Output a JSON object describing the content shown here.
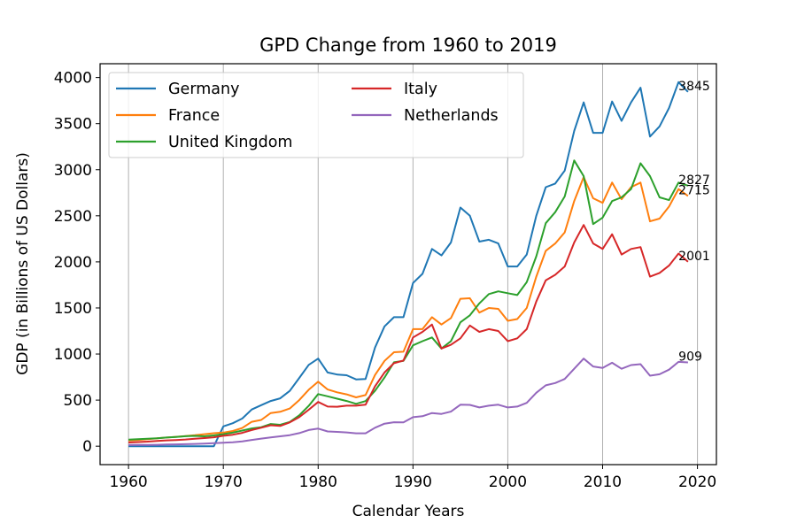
{
  "chart_data": {
    "type": "line",
    "title": "GPD Change from 1960 to 2019",
    "xlabel": "Calendar Years",
    "ylabel": "GDP (in  Billions of US Dollars)",
    "xlim": [
      1957,
      2022
    ],
    "ylim": [
      -200,
      4150
    ],
    "xticks": [
      1960,
      1970,
      1980,
      1990,
      2000,
      2010,
      2020
    ],
    "yticks": [
      0,
      500,
      1000,
      1500,
      2000,
      2500,
      3000,
      3500,
      4000
    ],
    "grid": "vertical",
    "legend_position": "upper-left",
    "legend_columns": 2,
    "x": [
      1960,
      1961,
      1962,
      1963,
      1964,
      1965,
      1966,
      1967,
      1968,
      1969,
      1970,
      1971,
      1972,
      1973,
      1974,
      1975,
      1976,
      1977,
      1978,
      1979,
      1980,
      1981,
      1982,
      1983,
      1984,
      1985,
      1986,
      1987,
      1988,
      1989,
      1990,
      1991,
      1992,
      1993,
      1994,
      1995,
      1996,
      1997,
      1998,
      1999,
      2000,
      2001,
      2002,
      2003,
      2004,
      2005,
      2006,
      2007,
      2008,
      2009,
      2010,
      2011,
      2012,
      2013,
      2014,
      2015,
      2016,
      2017,
      2018,
      2019
    ],
    "series": [
      {
        "name": "Germany",
        "color": "#1f77b4",
        "end_label": "3845",
        "values": [
          0,
          0,
          0,
          0,
          0,
          0,
          0,
          0,
          0,
          0,
          215,
          249,
          300,
          398,
          445,
          490,
          519,
          600,
          740,
          882,
          950,
          800,
          778,
          770,
          725,
          730,
          1070,
          1300,
          1400,
          1400,
          1770,
          1870,
          2140,
          2070,
          2210,
          2590,
          2500,
          2220,
          2240,
          2200,
          1950,
          1950,
          2080,
          2500,
          2810,
          2850,
          2990,
          3420,
          3730,
          3400,
          3400,
          3740,
          3530,
          3730,
          3890,
          3360,
          3470,
          3670,
          3950,
          3845
        ]
      },
      {
        "name": "France",
        "color": "#ff7f0e",
        "end_label": "2715",
        "values": [
          62,
          68,
          76,
          85,
          94,
          102,
          110,
          119,
          130,
          141,
          148,
          165,
          198,
          265,
          285,
          360,
          373,
          409,
          500,
          612,
          700,
          615,
          585,
          562,
          530,
          555,
          773,
          925,
          1020,
          1025,
          1270,
          1270,
          1400,
          1320,
          1390,
          1600,
          1605,
          1450,
          1500,
          1490,
          1360,
          1380,
          1500,
          1840,
          2120,
          2200,
          2320,
          2660,
          2920,
          2690,
          2640,
          2860,
          2680,
          2810,
          2860,
          2440,
          2470,
          2600,
          2790,
          2715
        ]
      },
      {
        "name": "United Kingdom",
        "color": "#2ca02c",
        "end_label": "2827",
        "values": [
          72,
          77,
          81,
          86,
          94,
          101,
          108,
          112,
          107,
          117,
          130,
          148,
          170,
          193,
          206,
          241,
          232,
          263,
          335,
          438,
          565,
          541,
          515,
          490,
          460,
          489,
          601,
          745,
          910,
          926,
          1094,
          1140,
          1180,
          1060,
          1140,
          1344,
          1420,
          1550,
          1650,
          1680,
          1660,
          1640,
          1780,
          2060,
          2420,
          2540,
          2710,
          3100,
          2930,
          2410,
          2480,
          2660,
          2700,
          2790,
          3070,
          2930,
          2700,
          2670,
          2860,
          2827
        ]
      },
      {
        "name": "Italy",
        "color": "#d62728",
        "end_label": "2001",
        "values": [
          40,
          45,
          50,
          57,
          63,
          67,
          73,
          81,
          88,
          97,
          113,
          125,
          145,
          175,
          200,
          227,
          220,
          258,
          315,
          395,
          480,
          430,
          428,
          440,
          440,
          450,
          650,
          800,
          900,
          929,
          1180,
          1240,
          1320,
          1060,
          1100,
          1170,
          1310,
          1240,
          1270,
          1250,
          1140,
          1170,
          1270,
          1570,
          1800,
          1860,
          1950,
          2210,
          2400,
          2200,
          2140,
          2300,
          2080,
          2140,
          2160,
          1840,
          1880,
          1960,
          2090,
          2001
        ]
      },
      {
        "name": "Netherlands",
        "color": "#9467bd",
        "end_label": "909",
        "values": [
          12,
          13,
          14,
          15,
          18,
          20,
          22,
          25,
          28,
          32,
          38,
          43,
          52,
          68,
          82,
          95,
          107,
          120,
          142,
          175,
          191,
          160,
          155,
          150,
          140,
          140,
          200,
          245,
          260,
          258,
          315,
          325,
          360,
          350,
          375,
          450,
          448,
          420,
          440,
          450,
          420,
          430,
          470,
          580,
          660,
          685,
          730,
          840,
          950,
          865,
          850,
          905,
          840,
          880,
          890,
          765,
          780,
          830,
          915,
          909
        ]
      }
    ]
  }
}
